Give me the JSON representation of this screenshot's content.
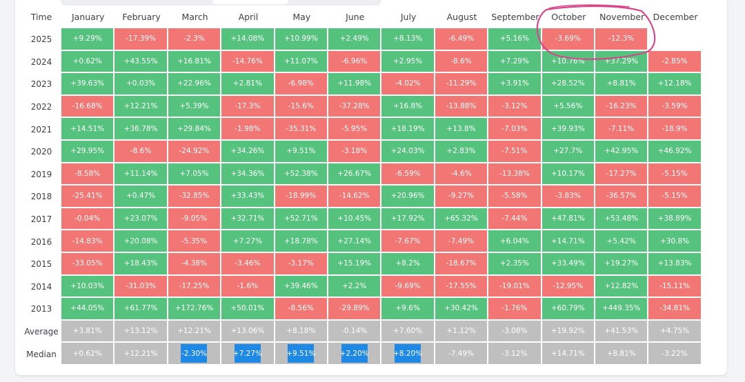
{
  "chart_data": {
    "type": "heatmap",
    "row_header_label": "Time",
    "columns": [
      "January",
      "February",
      "March",
      "April",
      "May",
      "June",
      "July",
      "August",
      "September",
      "October",
      "November",
      "December"
    ],
    "rows": [
      {
        "label": "2025",
        "values": [
          "+9.29%",
          "-17.39%",
          "-2.3%",
          "+14.08%",
          "+10.99%",
          "+2.49%",
          "+8.13%",
          "-6.49%",
          "+5.16%",
          "-3.69%",
          "-12.3%",
          ""
        ]
      },
      {
        "label": "2024",
        "values": [
          "+0.62%",
          "+43.55%",
          "+16.81%",
          "-14.76%",
          "+11.07%",
          "-6.96%",
          "+2.95%",
          "-8.6%",
          "+7.29%",
          "+10.76%",
          "+37.29%",
          "-2.85%"
        ]
      },
      {
        "label": "2023",
        "values": [
          "+39.63%",
          "+0.03%",
          "+22.96%",
          "+2.81%",
          "-6.98%",
          "+11.98%",
          "-4.02%",
          "-11.29%",
          "+3.91%",
          "+28.52%",
          "+8.81%",
          "+12.18%"
        ]
      },
      {
        "label": "2022",
        "values": [
          "-16.68%",
          "+12.21%",
          "+5.39%",
          "-17.3%",
          "-15.6%",
          "-37.28%",
          "+16.8%",
          "-13.88%",
          "-3.12%",
          "+5.56%",
          "-16.23%",
          "-3.59%"
        ]
      },
      {
        "label": "2021",
        "values": [
          "+14.51%",
          "+36.78%",
          "+29.84%",
          "-1.98%",
          "-35.31%",
          "-5.95%",
          "+18.19%",
          "+13.8%",
          "-7.03%",
          "+39.93%",
          "-7.11%",
          "-18.9%"
        ]
      },
      {
        "label": "2020",
        "values": [
          "+29.95%",
          "-8.6%",
          "-24.92%",
          "+34.26%",
          "+9.51%",
          "-3.18%",
          "+24.03%",
          "+2.83%",
          "-7.51%",
          "+27.7%",
          "+42.95%",
          "+46.92%"
        ]
      },
      {
        "label": "2019",
        "values": [
          "-8.58%",
          "+11.14%",
          "+7.05%",
          "+34.36%",
          "+52.38%",
          "+26.67%",
          "-6.59%",
          "-4.6%",
          "-13.38%",
          "+10.17%",
          "-17.27%",
          "-5.15%"
        ]
      },
      {
        "label": "2018",
        "values": [
          "-25.41%",
          "+0.47%",
          "-32.85%",
          "+33.43%",
          "-18.99%",
          "-14.62%",
          "+20.96%",
          "-9.27%",
          "-5.58%",
          "-3.83%",
          "-36.57%",
          "-5.15%"
        ]
      },
      {
        "label": "2017",
        "values": [
          "-0.04%",
          "+23.07%",
          "-9.05%",
          "+32.71%",
          "+52.71%",
          "+10.45%",
          "+17.92%",
          "+65.32%",
          "-7.44%",
          "+47.81%",
          "+53.48%",
          "+38.89%"
        ]
      },
      {
        "label": "2016",
        "values": [
          "-14.83%",
          "+20.08%",
          "-5.35%",
          "+7.27%",
          "+18.78%",
          "+27.14%",
          "-7.67%",
          "-7.49%",
          "+6.04%",
          "+14.71%",
          "+5.42%",
          "+30.8%"
        ]
      },
      {
        "label": "2015",
        "values": [
          "-33.05%",
          "+18.43%",
          "-4.38%",
          "-3.46%",
          "-3.17%",
          "+15.19%",
          "+8.2%",
          "-18.67%",
          "+2.35%",
          "+33.49%",
          "+19.27%",
          "+13.83%"
        ]
      },
      {
        "label": "2014",
        "values": [
          "+10.03%",
          "-31.03%",
          "-17.25%",
          "-1.6%",
          "+39.46%",
          "+2.2%",
          "-9.69%",
          "-17.55%",
          "-19.01%",
          "-12.95%",
          "+12.82%",
          "-15.11%"
        ]
      },
      {
        "label": "2013",
        "values": [
          "+44.05%",
          "+61.77%",
          "+172.76%",
          "+50.01%",
          "-8.56%",
          "-29.89%",
          "+9.6%",
          "+30.42%",
          "-1.76%",
          "+60.79%",
          "+449.35%",
          "-34.81%"
        ]
      }
    ],
    "summary_rows": [
      {
        "label": "Average",
        "values": [
          "+3.81%",
          "+13.12%",
          "+12.21%",
          "+13.06%",
          "+8.18%",
          "-0.14%",
          "+7.60%",
          "+1.12%",
          "-3.08%",
          "+19.92%",
          "+41.53%",
          "+4.75%"
        ],
        "highlight": []
      },
      {
        "label": "Median",
        "values": [
          "+0.62%",
          "+12.21%",
          "-2.30%",
          "+7.27%",
          "+9.51%",
          "+2.20%",
          "+8.20%",
          "-7.49%",
          "-3.12%",
          "+14.71%",
          "+8.81%",
          "-3.22%"
        ],
        "highlight": [
          2,
          3,
          4,
          5,
          6
        ]
      }
    ],
    "colors": {
      "positive": "#55c37e",
      "negative": "#f27673",
      "summary": "#bfbfbf",
      "highlight": "#1e88e5",
      "annotation": "#d9468a"
    },
    "annotation": {
      "type": "hand-drawn-circle",
      "covers": [
        "2025 October",
        "2025 November"
      ]
    }
  }
}
